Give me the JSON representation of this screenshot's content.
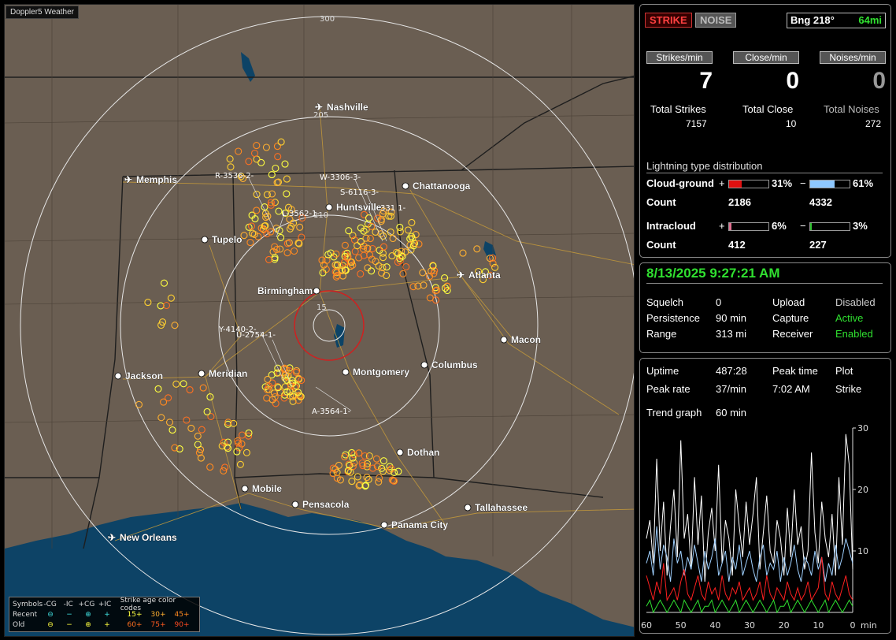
{
  "app": {
    "title": "Doppler5 Weather"
  },
  "map": {
    "ring_labels": [
      "300",
      "205",
      "110",
      "15"
    ],
    "cities": [
      {
        "name": "Nashville",
        "airport": true
      },
      {
        "name": "Memphis",
        "airport": true
      },
      {
        "name": "Chattanooga",
        "airport": false
      },
      {
        "name": "Huntsville",
        "airport": false
      },
      {
        "name": "Tupelo",
        "airport": false
      },
      {
        "name": "Atlanta",
        "airport": true
      },
      {
        "name": "Birmingham",
        "airport": false
      },
      {
        "name": "Macon",
        "airport": false
      },
      {
        "name": "Jackson",
        "airport": false
      },
      {
        "name": "Meridian",
        "airport": false
      },
      {
        "name": "Montgomery",
        "airport": false
      },
      {
        "name": "Columbus",
        "airport": false
      },
      {
        "name": "Dothan",
        "airport": false
      },
      {
        "name": "Mobile",
        "airport": false
      },
      {
        "name": "Pensacola",
        "airport": false
      },
      {
        "name": "Tallahassee",
        "airport": false
      },
      {
        "name": "Panama City",
        "airport": false
      },
      {
        "name": "New Orleans",
        "airport": true
      }
    ],
    "storm_labels": [
      "R-3536-2-",
      "W-3306-3-",
      "S-6116-3-",
      "L-3562-1-",
      "331 1-",
      "Y-4140-2-",
      "U-2754-1-",
      "A-3564-1-"
    ],
    "colors": {
      "land": "#6a5e52",
      "water": "#0d4366",
      "ring": "#e6e6e6",
      "inner_ring": "#d02020",
      "roads": "#c59a3a",
      "borders": "#222222"
    }
  },
  "legend": {
    "symbols_label": "Symbols",
    "headers": [
      "-CG",
      "-IC",
      "+CG",
      "+IC"
    ],
    "age_header": "Strike age color codes",
    "rows": [
      {
        "label": "Recent",
        "ages": [
          "15+",
          "30+",
          "45+"
        ]
      },
      {
        "label": "Old",
        "ages": [
          "60+",
          "75+",
          "90+"
        ]
      }
    ],
    "age_colors": [
      "#ffff40",
      "#ffb030",
      "#ff8a20",
      "#ff7020",
      "#ff5a20",
      "#ff4a20"
    ]
  },
  "panel_counts": {
    "strike_btn": "STRIKE",
    "noise_btn": "NOISE",
    "bearing": "Bng 218°",
    "distance": "64mi",
    "rates": [
      {
        "label": "Strikes/min",
        "value": "7"
      },
      {
        "label": "Close/min",
        "value": "0"
      },
      {
        "label": "Noises/min",
        "value": "0"
      }
    ],
    "totals": [
      {
        "label": "Total Strikes",
        "value": "7157"
      },
      {
        "label": "Total Close",
        "value": "10"
      },
      {
        "label": "Total Noises",
        "value": "272"
      }
    ],
    "dist_title": "Lightning type distribution",
    "cloud_ground": {
      "label": "Cloud-ground",
      "pos_pct": "31%",
      "neg_pct": "61%",
      "pos_frac": 0.31,
      "neg_frac": 0.61,
      "count_label": "Count",
      "pos_count": "2186",
      "neg_count": "4332"
    },
    "intracloud": {
      "label": "Intracloud",
      "pos_pct": "6%",
      "neg_pct": "3%",
      "pos_frac": 0.06,
      "neg_frac": 0.03,
      "count_label": "Count",
      "pos_count": "412",
      "neg_count": "227"
    },
    "plus_sign": "+",
    "minus_sign": "−"
  },
  "panel_status": {
    "datetime": "8/13/2025 9:27:21 AM",
    "items": [
      {
        "label": "Squelch",
        "value": "0"
      },
      {
        "label": "Upload",
        "value": "Disabled",
        "color": "#cccccc"
      },
      {
        "label": "Persistence",
        "value": "90 min"
      },
      {
        "label": "Capture",
        "value": "Active",
        "color": "#30e030"
      },
      {
        "label": "Range",
        "value": "313 mi"
      },
      {
        "label": "Receiver",
        "value": "Enabled",
        "color": "#30e030"
      }
    ]
  },
  "panel_trend": {
    "uptime_label": "Uptime",
    "uptime_value": "487:28",
    "peak_time_label": "Peak time",
    "peak_time_value": "7:02 AM",
    "plot_label": "Plot",
    "plot_value": "Strike",
    "peak_rate_label": "Peak rate",
    "peak_rate_value": "37/min",
    "trend_label": "Trend graph",
    "trend_value": "60 min",
    "x_ticks": [
      "60",
      "50",
      "40",
      "30",
      "20",
      "10",
      "0"
    ],
    "x_unit": "min",
    "y_ticks": [
      "30",
      "20",
      "10"
    ]
  },
  "chart_data": {
    "type": "line",
    "x": [
      60,
      59,
      58,
      57,
      56,
      55,
      54,
      53,
      52,
      51,
      50,
      49,
      48,
      47,
      46,
      45,
      44,
      43,
      42,
      41,
      40,
      39,
      38,
      37,
      36,
      35,
      34,
      33,
      32,
      31,
      30,
      29,
      28,
      27,
      26,
      25,
      24,
      23,
      22,
      21,
      20,
      19,
      18,
      17,
      16,
      15,
      14,
      13,
      12,
      11,
      10,
      9,
      8,
      7,
      6,
      5,
      4,
      3,
      2,
      1,
      0
    ],
    "xlim": [
      60,
      0
    ],
    "ylim": [
      0,
      30
    ],
    "series": [
      {
        "color": "#ffffff",
        "values": [
          12,
          15,
          8,
          25,
          10,
          18,
          6,
          14,
          20,
          9,
          28,
          12,
          16,
          7,
          22,
          11,
          19,
          5,
          13,
          17,
          10,
          24,
          8,
          15,
          12,
          6,
          20,
          14,
          9,
          18,
          11,
          16,
          22,
          7,
          13,
          19,
          10,
          8,
          15,
          12,
          6,
          17,
          9,
          20,
          11,
          14,
          7,
          10,
          26,
          13,
          8,
          18,
          12,
          9,
          16,
          6,
          22,
          11,
          29,
          24,
          7
        ]
      },
      {
        "color": "#9fd0ff",
        "values": [
          8,
          10,
          6,
          14,
          7,
          11,
          9,
          5,
          12,
          8,
          10,
          6,
          9,
          7,
          11,
          8,
          5,
          10,
          7,
          9,
          12,
          6,
          8,
          10,
          5,
          9,
          7,
          11,
          6,
          8,
          10,
          7,
          5,
          9,
          11,
          6,
          8,
          7,
          10,
          5,
          9,
          6,
          8,
          11,
          7,
          5,
          9,
          8,
          6,
          10,
          7,
          9,
          5,
          8,
          6,
          11,
          7,
          9,
          12,
          10,
          8
        ]
      },
      {
        "color": "#ff2020",
        "values": [
          6,
          4,
          2,
          5,
          3,
          8,
          2,
          3,
          4,
          2,
          5,
          7,
          3,
          2,
          4,
          6,
          3,
          2,
          5,
          3,
          4,
          2,
          6,
          3,
          2,
          4,
          3,
          5,
          2,
          3,
          4,
          2,
          3,
          5,
          2,
          6,
          3,
          2,
          4,
          3,
          2,
          5,
          3,
          2,
          4,
          2,
          3,
          5,
          2,
          3,
          4,
          9,
          3,
          2,
          5,
          3,
          2,
          4,
          6,
          3,
          2
        ]
      },
      {
        "color": "#30e030",
        "values": [
          1,
          2,
          0,
          1,
          2,
          1,
          0,
          1,
          2,
          1,
          0,
          2,
          1,
          0,
          1,
          2,
          0,
          1,
          1,
          2,
          0,
          1,
          2,
          1,
          0,
          1,
          2,
          0,
          1,
          2,
          1,
          0,
          1,
          2,
          1,
          0,
          1,
          2,
          0,
          1,
          1,
          2,
          0,
          1,
          2,
          1,
          0,
          1,
          2,
          1,
          0,
          1,
          2,
          0,
          1,
          2,
          1,
          0,
          1,
          2,
          1
        ]
      }
    ]
  }
}
